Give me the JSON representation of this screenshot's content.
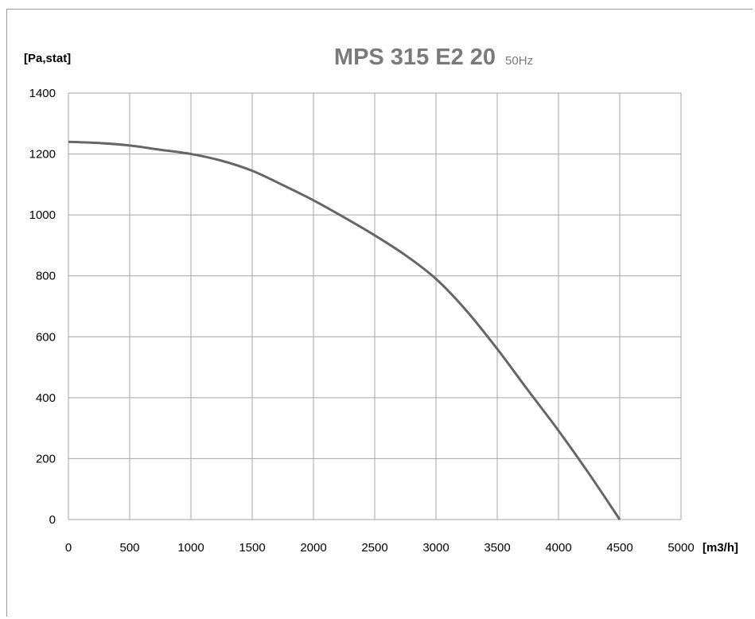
{
  "chart_data": {
    "type": "line",
    "title": "MPS 315 E2 20",
    "subtitle": "50Hz",
    "xlabel": "[m3/h]",
    "ylabel": "[Pa,stat]",
    "xlim": [
      0,
      5000
    ],
    "ylim": [
      0,
      1400
    ],
    "xticks": [
      "0",
      "500",
      "1000",
      "1500",
      "2000",
      "2500",
      "3000",
      "3500",
      "4000",
      "4500",
      "5000"
    ],
    "yticks": [
      "0",
      "200",
      "400",
      "600",
      "800",
      "1000",
      "1200",
      "1400"
    ],
    "grid": true,
    "series": [
      {
        "color": "#666666",
        "x": [
          0,
          250,
          500,
          750,
          1000,
          1250,
          1500,
          1750,
          2000,
          2250,
          2500,
          2750,
          3000,
          3250,
          3500,
          3750,
          4000,
          4250,
          4500
        ],
        "y": [
          1240,
          1236,
          1228,
          1214,
          1200,
          1178,
          1145,
          1098,
          1048,
          992,
          933,
          868,
          790,
          685,
          560,
          425,
          292,
          150,
          0
        ]
      }
    ]
  }
}
